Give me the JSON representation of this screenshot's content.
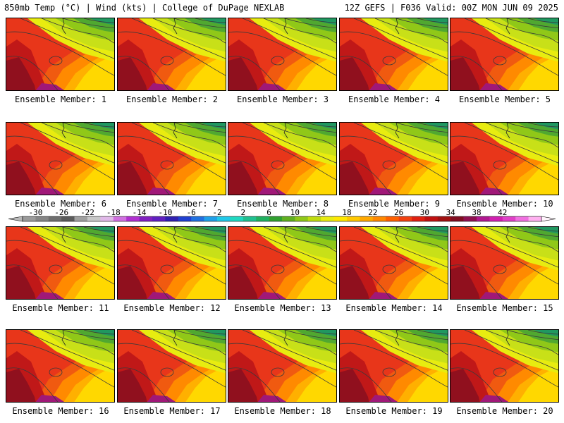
{
  "header": {
    "left": "850mb Temp (°C) | Wind (kts) | College of DuPage NEXLAB",
    "right": "12Z GEFS | F036 Valid: 00Z MON JUN 09 2025"
  },
  "members": [
    "Ensemble Member: 1",
    "Ensemble Member: 2",
    "Ensemble Member: 3",
    "Ensemble Member: 4",
    "Ensemble Member: 5",
    "Ensemble Member: 6",
    "Ensemble Member: 7",
    "Ensemble Member: 8",
    "Ensemble Member: 9",
    "Ensemble Member: 10",
    "Ensemble Member: 11",
    "Ensemble Member: 12",
    "Ensemble Member: 13",
    "Ensemble Member: 14",
    "Ensemble Member: 15",
    "Ensemble Member: 16",
    "Ensemble Member: 17",
    "Ensemble Member: 18",
    "Ensemble Member: 19",
    "Ensemble Member: 20"
  ],
  "colorbar": {
    "ticks": [
      "-30",
      "-26",
      "-22",
      "-18",
      "-14",
      "-10",
      "-6",
      "-2",
      "2",
      "6",
      "10",
      "14",
      "18",
      "22",
      "26",
      "30",
      "34",
      "38",
      "42"
    ],
    "colors": [
      "#9a9a9a",
      "#858585",
      "#6e6e6e",
      "#5b5b5b",
      "#a0a0a0",
      "#c8c8c8",
      "#e0b8e8",
      "#d070e0",
      "#b030d0",
      "#8020c0",
      "#6020c0",
      "#3020b0",
      "#2040d0",
      "#2070e0",
      "#20a0e8",
      "#20c8e8",
      "#20d8c0",
      "#20c090",
      "#20b060",
      "#30a030",
      "#60b020",
      "#90c818",
      "#c0dc10",
      "#e8ec10",
      "#ffe800",
      "#ffc800",
      "#ffa800",
      "#ff8800",
      "#ff6000",
      "#f04010",
      "#e02010",
      "#c01010",
      "#a01010",
      "#800c20",
      "#901050",
      "#b01890",
      "#d020b0",
      "#e040c8",
      "#f070e0",
      "#ffb0f0"
    ]
  }
}
